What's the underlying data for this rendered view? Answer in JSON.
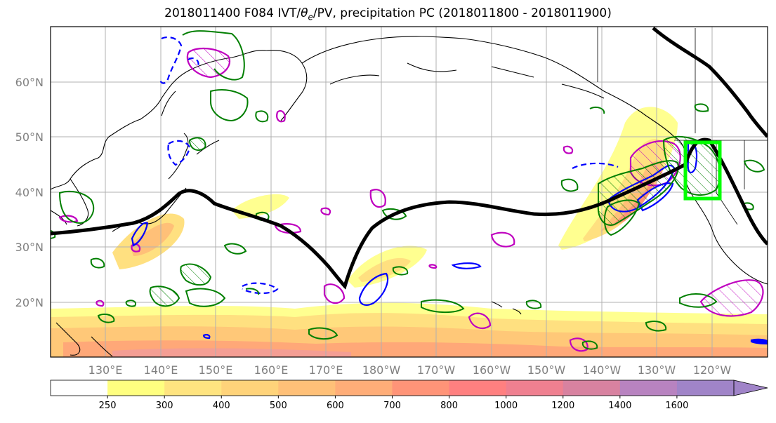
{
  "title": "2018011400 F084 IVT/θe/PV, precipitation PC (2018011800 - 2018011900)",
  "map": {
    "lat_labels": [
      "60°N",
      "50°N",
      "40°N",
      "30°N",
      "20°N"
    ],
    "lon_labels": [
      "130°E",
      "140°E",
      "150°E",
      "160°E",
      "170°E",
      "180°W",
      "170°W",
      "160°W",
      "150°W",
      "140°W",
      "130°W",
      "120°W"
    ],
    "lat_range": [
      10,
      70
    ],
    "lon_range": [
      120,
      250
    ],
    "gridlines": true,
    "highlight_box_color": "#00ff00"
  },
  "colorbar": {
    "ticks": [
      "250",
      "300",
      "400",
      "500",
      "600",
      "700",
      "800",
      "1000",
      "1200",
      "1400",
      "1600"
    ],
    "colors": [
      "#ffffff",
      "#ffff80",
      "#ffe480",
      "#ffd37a",
      "#ffc078",
      "#ffad78",
      "#ff9478",
      "#ff8080",
      "#ef8090",
      "#d882a0",
      "#b883c0",
      "#a084c8"
    ],
    "extend": "max"
  },
  "contour_colors": {
    "ivt_shading": "#ffcc66",
    "theta_e": "#0000ff",
    "pv": "#007f00",
    "precip_pc": "#bf00bf",
    "jet": "#000000"
  }
}
